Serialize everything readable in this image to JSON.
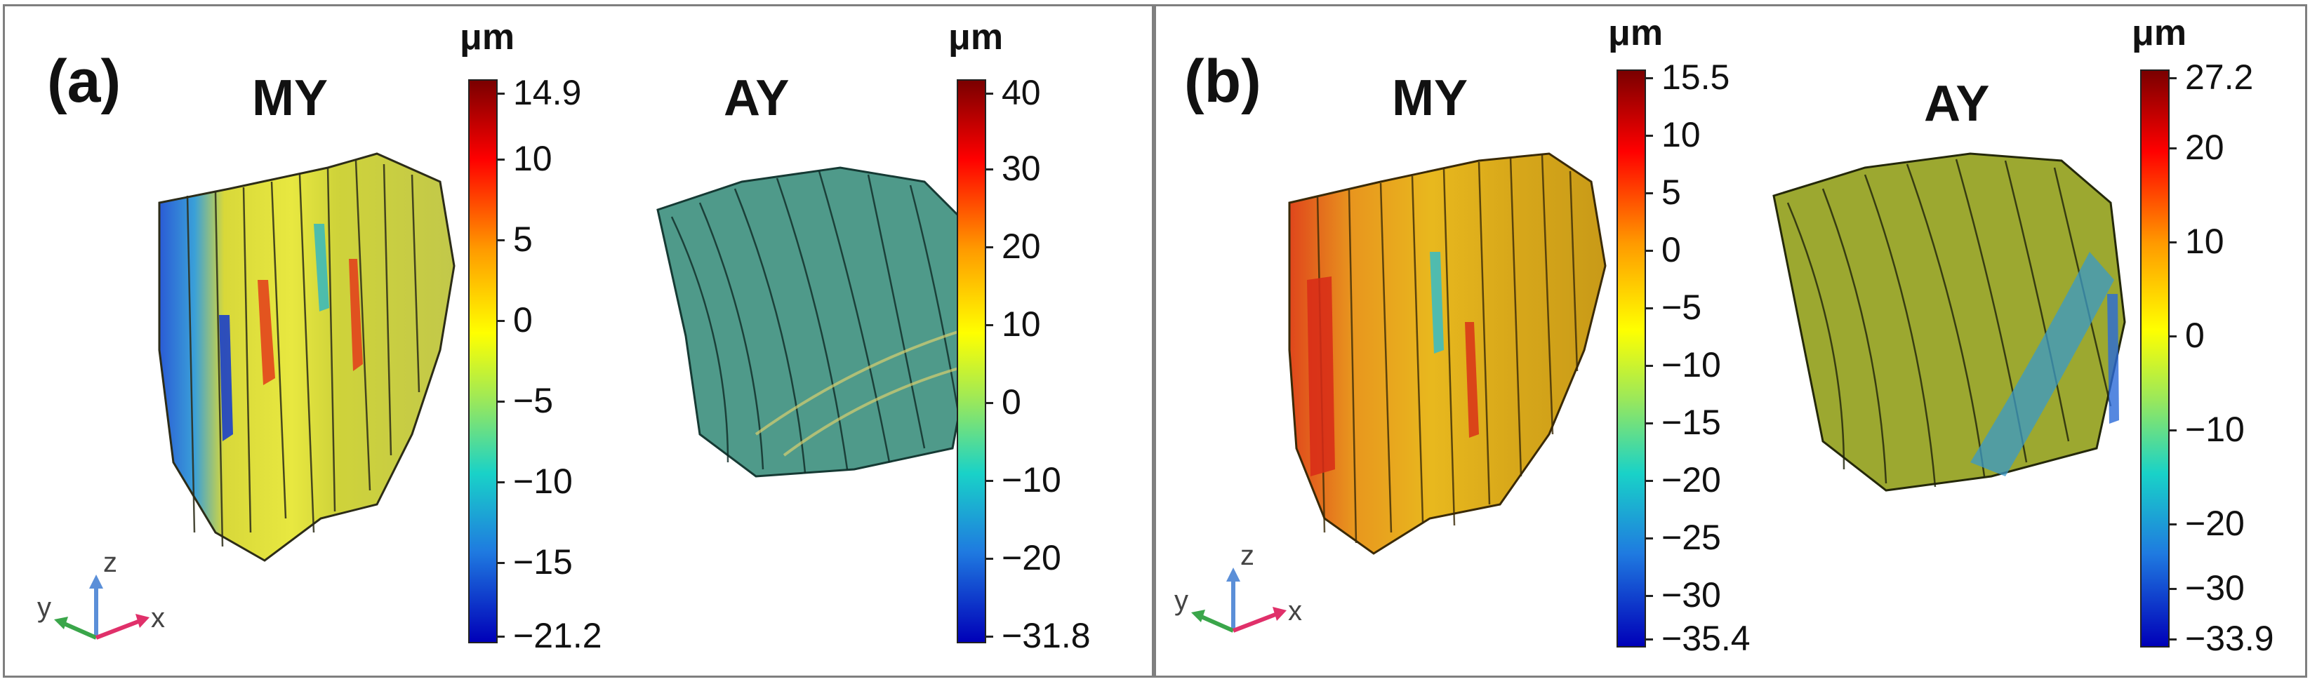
{
  "panels": [
    {
      "label": "(a)",
      "groups": [
        {
          "title": "MY",
          "unit": "μm",
          "ticks": [
            "14.9",
            "10",
            "5",
            "0",
            "−5",
            "−10",
            "−15",
            "−21.2"
          ]
        },
        {
          "title": "AY",
          "unit": "μm",
          "ticks": [
            "40",
            "30",
            "20",
            "10",
            "0",
            "−10",
            "−20",
            "−31.8"
          ]
        }
      ],
      "axes": {
        "z": "z",
        "y": "y",
        "x": "x"
      }
    },
    {
      "label": "(b)",
      "groups": [
        {
          "title": "MY",
          "unit": "μm",
          "ticks": [
            "15.5",
            "10",
            "5",
            "0",
            "−5",
            "−10",
            "−15",
            "−20",
            "−25",
            "−30",
            "−35.4"
          ]
        },
        {
          "title": "AY",
          "unit": "μm",
          "ticks": [
            "27.2",
            "20",
            "10",
            "0",
            "−10",
            "−20",
            "−30",
            "−33.9"
          ]
        }
      ],
      "axes": {
        "z": "z",
        "y": "y",
        "x": "x"
      }
    }
  ],
  "colors": {
    "colormap_top": "#7a0000",
    "colormap_mid": "#ffff00",
    "colormap_bottom": "#0000b8",
    "frame": "#7f7f7f"
  },
  "icons": {
    "fiber_render": "fiber-bundle-3d",
    "axes_triad": "xyz-axes-icon"
  }
}
